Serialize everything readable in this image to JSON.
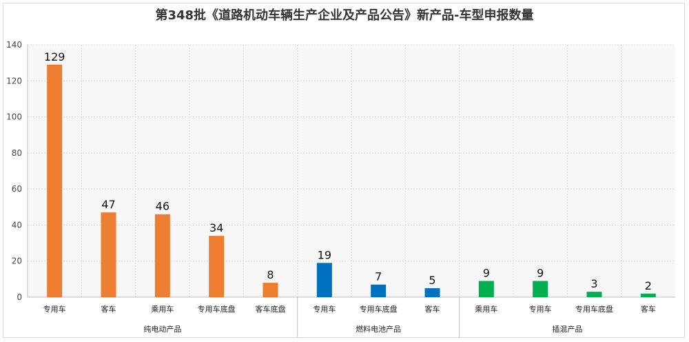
{
  "chart_data": {
    "type": "bar",
    "title": "第348批《道路机动车辆生产企业及产品公告》新产品-车型申报数量",
    "ylim": [
      0,
      140
    ],
    "yticks": [
      0,
      20,
      40,
      60,
      80,
      100,
      120,
      140
    ],
    "grid": true,
    "legend": "none",
    "groups": [
      {
        "name": "纯电动产品",
        "color": "#ED7D31",
        "categories": [
          "专用车",
          "客车",
          "乘用车",
          "专用车底盘",
          "客车底盘"
        ],
        "values": [
          129,
          47,
          46,
          34,
          8
        ]
      },
      {
        "name": "燃料电池产品",
        "color": "#0070C0",
        "categories": [
          "专用车",
          "专用车底盘",
          "客车"
        ],
        "values": [
          19,
          7,
          5
        ]
      },
      {
        "name": "插混产品",
        "color": "#00B050",
        "categories": [
          "乘用车",
          "专用车",
          "专用车底盘",
          "客车"
        ],
        "values": [
          9,
          9,
          3,
          2
        ]
      }
    ]
  }
}
